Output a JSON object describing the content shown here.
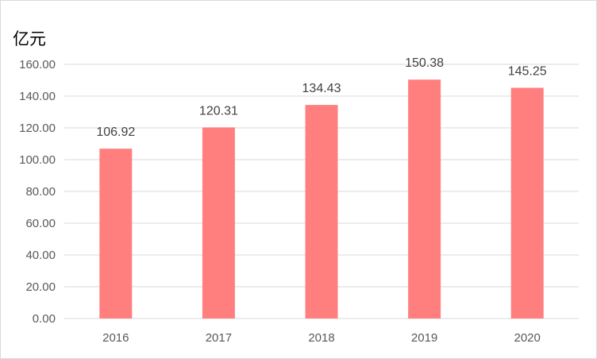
{
  "chart_data": {
    "type": "bar",
    "unit_label": "亿元",
    "categories": [
      "2016",
      "2017",
      "2018",
      "2019",
      "2020"
    ],
    "values": [
      106.92,
      120.31,
      134.43,
      150.38,
      145.25
    ],
    "data_labels": [
      "106.92",
      "120.31",
      "134.43",
      "150.38",
      "145.25"
    ],
    "yticks": [
      "0.00",
      "20.00",
      "40.00",
      "60.00",
      "80.00",
      "100.00",
      "120.00",
      "140.00",
      "160.00"
    ],
    "ylim": [
      0,
      160
    ],
    "ystep": 20,
    "grid": true,
    "legend": "none",
    "colors": {
      "bar": "#ff7f7f",
      "grid": "#d9d9d9",
      "tick_text": "#595959",
      "label_text": "#404040"
    }
  }
}
